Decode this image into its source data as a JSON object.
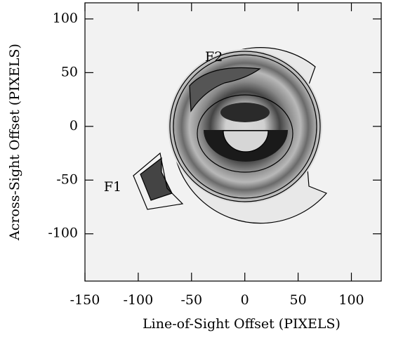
{
  "chart_data": {
    "type": "image",
    "x_label": "Line-of-Sight Offset (PIXELS)",
    "y_label": "Across-Sight Offset (PIXELS)",
    "xlim": [
      -150,
      128
    ],
    "ylim": [
      -144,
      115
    ],
    "xticks": [
      -150,
      -100,
      -50,
      0,
      50,
      100
    ],
    "yticks": [
      -100,
      -50,
      0,
      50,
      100
    ],
    "annotations": [
      {
        "text": "F1",
        "x": -124,
        "y": -57
      },
      {
        "text": "F2",
        "x": -29,
        "y": 64
      }
    ]
  }
}
